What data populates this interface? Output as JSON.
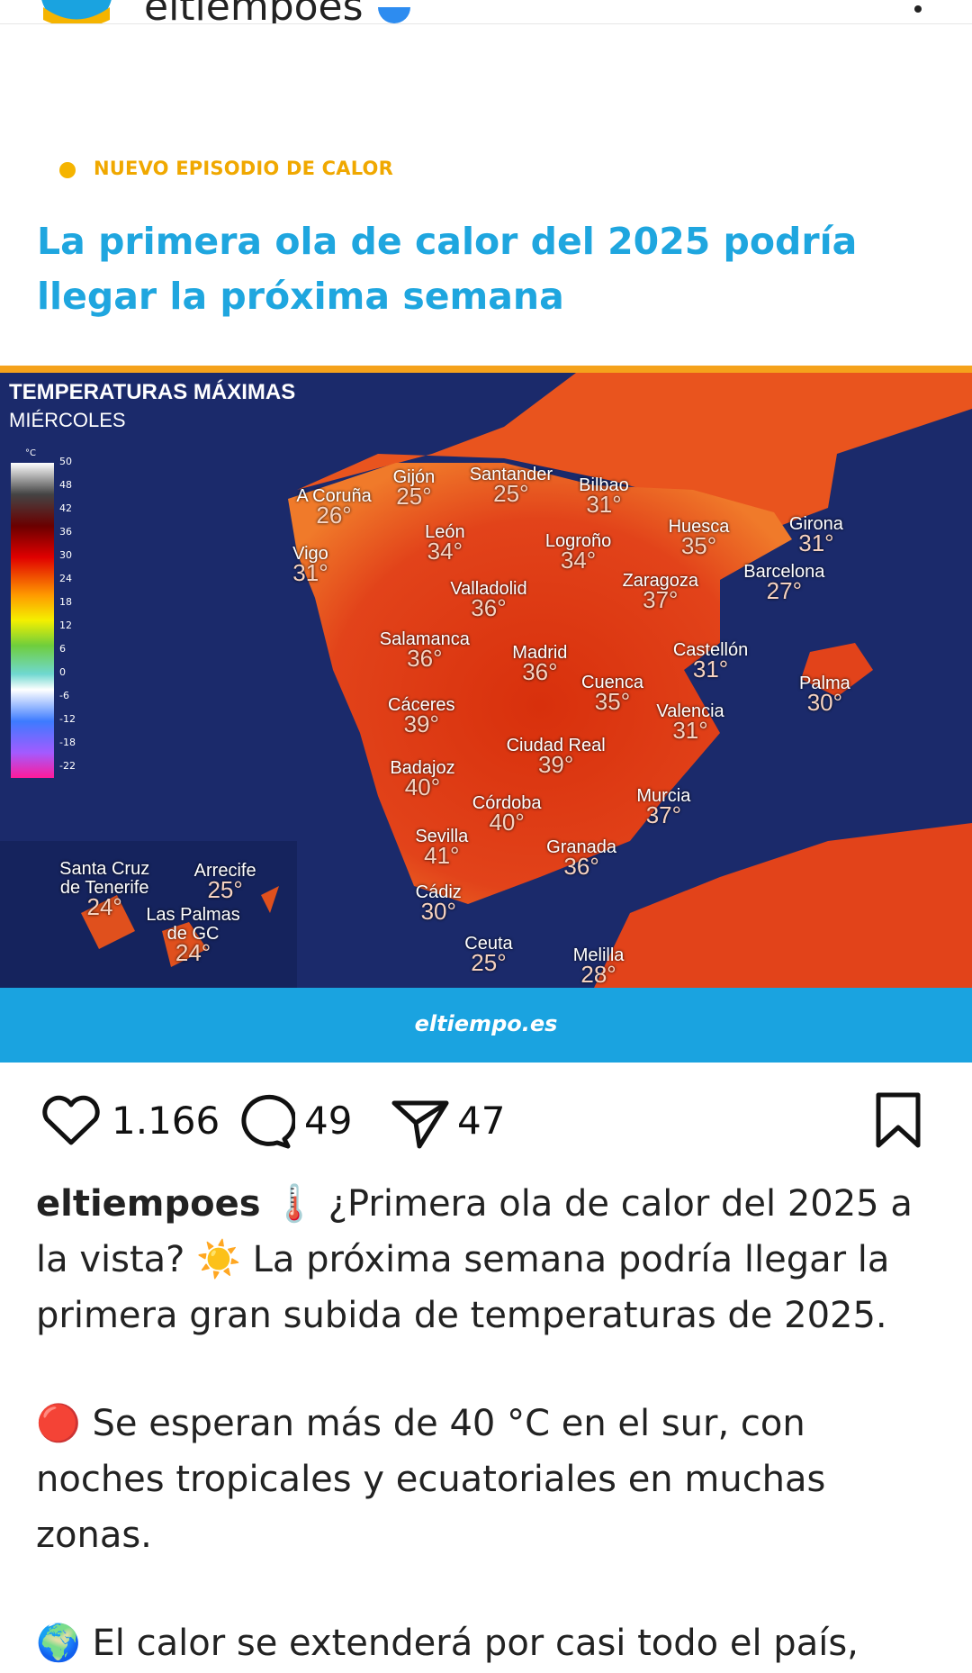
{
  "header": {
    "username": "eltiempoes"
  },
  "post": {
    "tag": "NUEVO EPISODIO DE CALOR",
    "headline": "La primera ola de calor del 2025 podría llegar la próxima semana"
  },
  "map": {
    "title": "TEMPERATURAS MÁXIMAS",
    "subtitle": "MIÉRCOLES",
    "unit": "°C",
    "scale": [
      "50",
      "48",
      "42",
      "36",
      "30",
      "24",
      "18",
      "12",
      "6",
      "0",
      "-6",
      "-12",
      "-18",
      "-22"
    ],
    "cities": [
      {
        "name": "A Coruña",
        "temp": "26°"
      },
      {
        "name": "Gijón",
        "temp": "25°"
      },
      {
        "name": "Santander",
        "temp": "25°"
      },
      {
        "name": "Bilbao",
        "temp": "31°"
      },
      {
        "name": "León",
        "temp": "34°"
      },
      {
        "name": "Logroño",
        "temp": "34°"
      },
      {
        "name": "Huesca",
        "temp": "35°"
      },
      {
        "name": "Girona",
        "temp": "31°"
      },
      {
        "name": "Vigo",
        "temp": "31°"
      },
      {
        "name": "Barcelona",
        "temp": "27°"
      },
      {
        "name": "Zaragoza",
        "temp": "37°"
      },
      {
        "name": "Valladolid",
        "temp": "36°"
      },
      {
        "name": "Salamanca",
        "temp": "36°"
      },
      {
        "name": "Madrid",
        "temp": "36°"
      },
      {
        "name": "Castellón",
        "temp": "31°"
      },
      {
        "name": "Palma",
        "temp": "30°"
      },
      {
        "name": "Cuenca",
        "temp": "35°"
      },
      {
        "name": "Cáceres",
        "temp": "39°"
      },
      {
        "name": "Valencia",
        "temp": "31°"
      },
      {
        "name": "Ciudad Real",
        "temp": "39°"
      },
      {
        "name": "Badajoz",
        "temp": "40°"
      },
      {
        "name": "Murcia",
        "temp": "37°"
      },
      {
        "name": "Córdoba",
        "temp": "40°"
      },
      {
        "name": "Sevilla",
        "temp": "41°"
      },
      {
        "name": "Granada",
        "temp": "36°"
      },
      {
        "name": "Cádiz",
        "temp": "30°"
      },
      {
        "name": "Ceuta",
        "temp": "25°"
      },
      {
        "name": "Melilla",
        "temp": "28°"
      },
      {
        "name": "Santa Cruz de Tenerife",
        "temp": "24°"
      },
      {
        "name": "Arrecife",
        "temp": "25°"
      },
      {
        "name": "Las Palmas de GC",
        "temp": "24°"
      }
    ],
    "brand": "eltiempo.es"
  },
  "actions": {
    "likes": "1.166",
    "comments": "49",
    "shares": "47"
  },
  "caption": {
    "username": "eltiempoes",
    "paragraphs": [
      "🌡️ ¿Primera ola de calor del 2025 a la vista? ☀️ La próxima semana podría llegar la primera gran subida de temperaturas de 2025.",
      "🔴 Se esperan más de 40 °C en el sur, con noches tropicales y ecuatoriales en muchas zonas.",
      "🌍 El calor se extenderá por casi todo el país,"
    ]
  }
}
